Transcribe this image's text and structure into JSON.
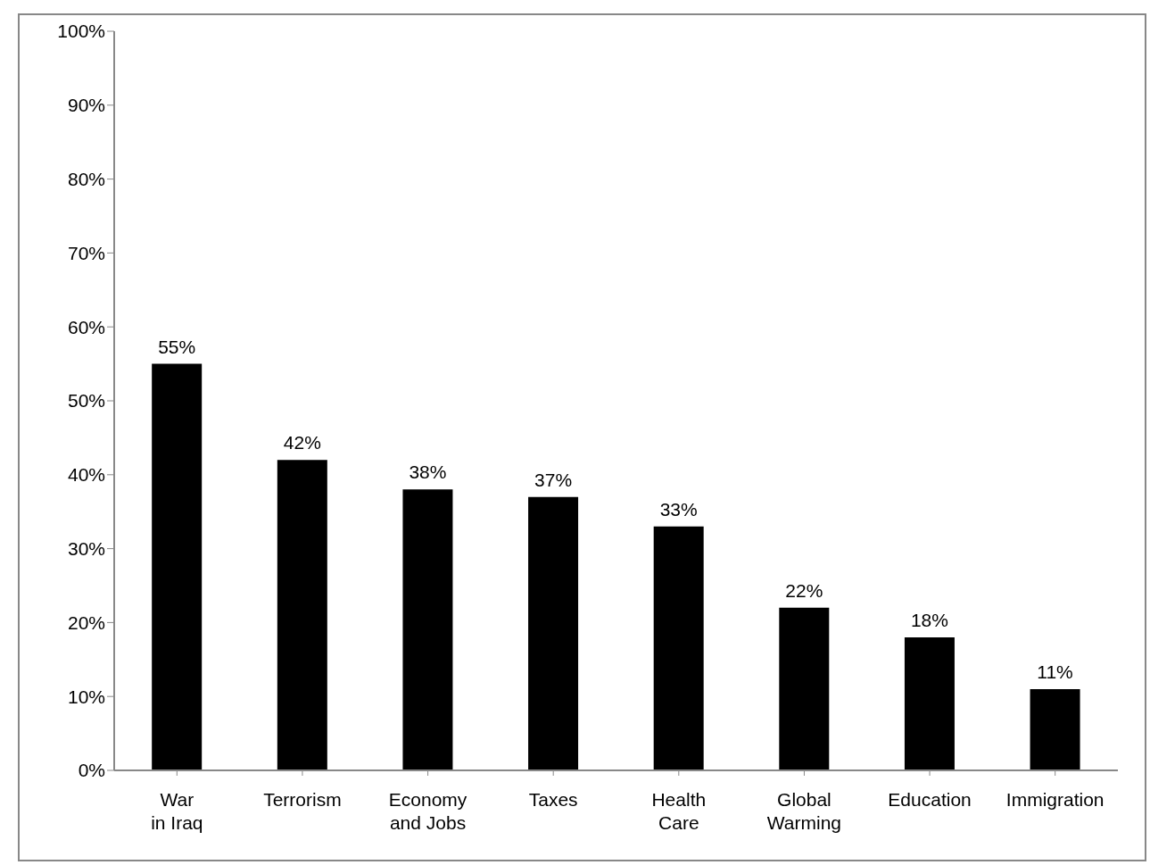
{
  "chart_data": {
    "type": "bar",
    "categories": [
      "War in Iraq",
      "Terrorism",
      "Economy and Jobs",
      "Taxes",
      "Health Care",
      "Global Warming",
      "Education",
      "Immigration"
    ],
    "values": [
      55,
      42,
      38,
      37,
      33,
      22,
      18,
      11
    ],
    "color": "#000000",
    "value_labels": [
      "55%",
      "42%",
      "38%",
      "37%",
      "33%",
      "22%",
      "18%",
      "11%"
    ],
    "ylim": [
      0,
      100
    ],
    "yticks": [
      {
        "value": 0,
        "label": "0%"
      },
      {
        "value": 10,
        "label": "10%"
      },
      {
        "value": 20,
        "label": "20%"
      },
      {
        "value": 30,
        "label": "30%"
      },
      {
        "value": 40,
        "label": "40%"
      },
      {
        "value": 50,
        "label": "50%"
      },
      {
        "value": 60,
        "label": "60%"
      },
      {
        "value": 70,
        "label": "70%"
      },
      {
        "value": 80,
        "label": "80%"
      },
      {
        "value": 90,
        "label": "90%"
      },
      {
        "value": 100,
        "label": "100%"
      }
    ],
    "grid": false,
    "legend": false
  }
}
